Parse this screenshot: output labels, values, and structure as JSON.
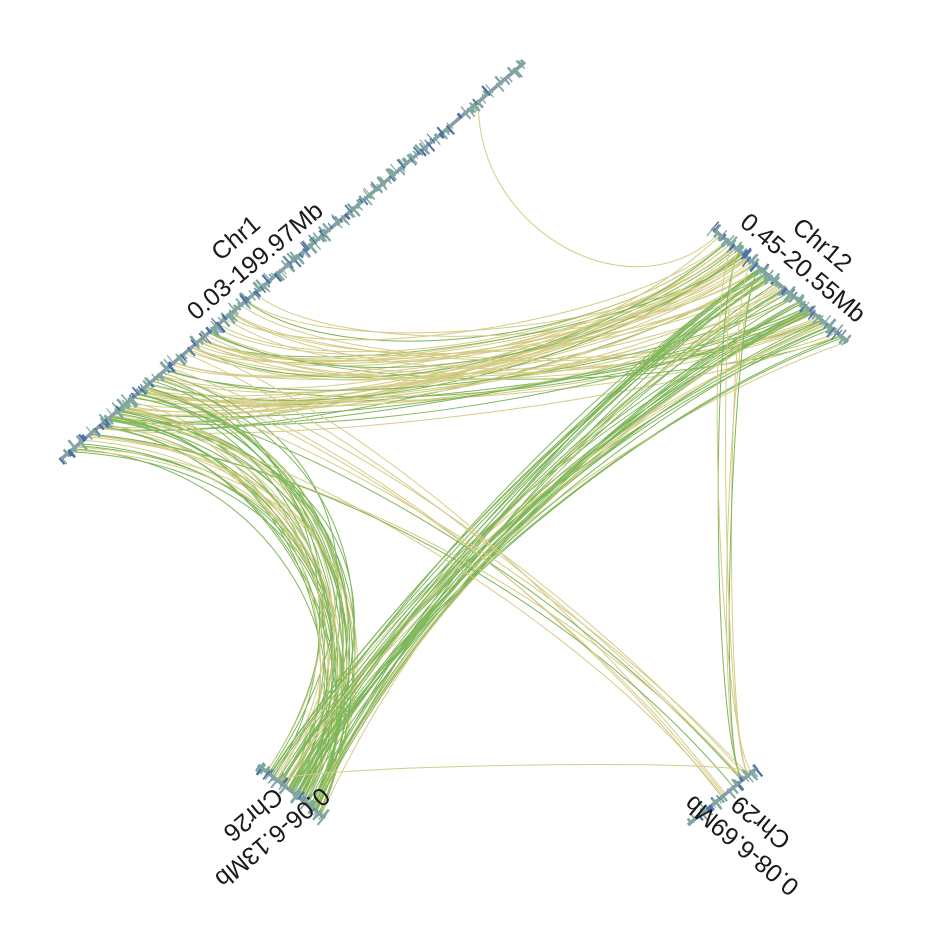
{
  "chart_data": {
    "type": "synteny-circos",
    "colors": {
      "backbone": "#8a9aaa",
      "gene_tick_light": "#7fa8a0",
      "gene_tick_dark": "#4d6fa8",
      "link_green": "#7fb65a",
      "link_yellow": "#d4cc85"
    },
    "chromosomes": [
      {
        "id": "Chr1",
        "name": "Chr1",
        "range": "0.03-199.97Mb"
      },
      {
        "id": "Chr12",
        "name": "Chr12",
        "range": "0.45-20.55Mb"
      },
      {
        "id": "Chr29",
        "name": "Chr29",
        "range": "0.08-6.69Mb"
      },
      {
        "id": "Chr26",
        "name": "Chr26",
        "range": "0.06-6.13Mb"
      }
    ]
  }
}
